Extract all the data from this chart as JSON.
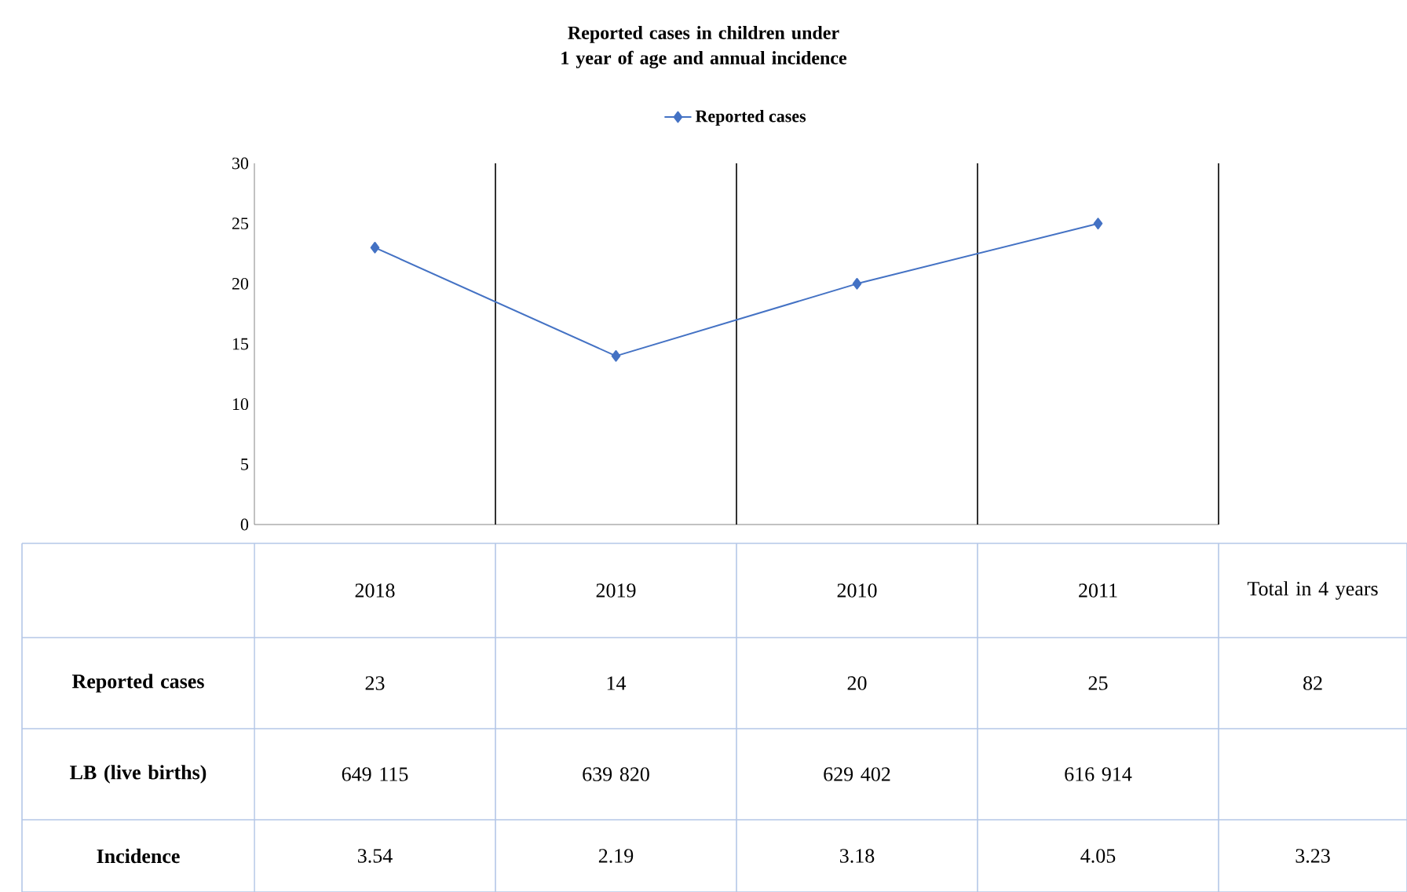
{
  "chart_data": {
    "type": "line",
    "title": "Reported cases in children under 1 year of age and annual incidence",
    "categories": [
      "2018",
      "2019",
      "2010",
      "2011"
    ],
    "series": [
      {
        "name": "Reported cases",
        "color": "#4472c4",
        "values": [
          23,
          14,
          20,
          25
        ],
        "value_labels": [
          "23",
          "14",
          "20",
          "25"
        ]
      }
    ],
    "ylim": [
      0,
      30
    ],
    "yticks": [
      0,
      5,
      10,
      15,
      20,
      25,
      30
    ],
    "grid": "x",
    "legend": "top",
    "marker": "diamond",
    "line_style": "solid",
    "annotations": [
      "Total in 4 years",
      "82",
      "LB (live births)",
      "649 115",
      "639 820",
      "629 402",
      "616 914",
      "Incidence",
      "3.54",
      "2.19",
      "3.18",
      "4.05",
      "3.23"
    ]
  }
}
